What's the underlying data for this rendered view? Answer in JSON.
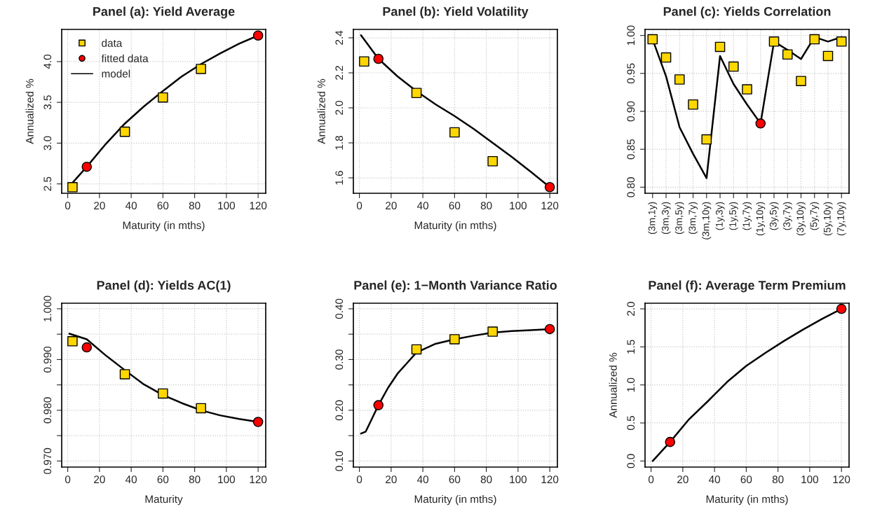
{
  "chart_data": [
    {
      "type": "line",
      "title": "Panel (a): Yield Average",
      "xlabel": "Maturity (in mths)",
      "ylabel": "Annualized %",
      "xlim": [
        -3.8,
        124.8
      ],
      "xticks": [
        0,
        20,
        40,
        60,
        80,
        100,
        120
      ],
      "ylim": [
        2.385,
        4.395
      ],
      "yticks": [
        2.5,
        {
          "value": 3,
          "label": "3.0"
        },
        3.5,
        {
          "value": 4,
          "label": "4.0"
        }
      ],
      "grid": true,
      "legend": "top left",
      "series": [
        {
          "name": "data",
          "type": "scatter",
          "marker": "square",
          "color": "#ffd700",
          "x": [
            3,
            36,
            60,
            84
          ],
          "values": [
            2.46,
            3.14,
            3.56,
            3.91
          ]
        },
        {
          "name": "fitted data",
          "type": "scatter",
          "marker": "circle",
          "color": "#ff0000",
          "x": [
            12,
            120
          ],
          "values": [
            2.71,
            4.32
          ]
        },
        {
          "name": "model",
          "type": "line",
          "color": "#000000",
          "x": [
            1,
            12,
            24,
            36,
            48,
            60,
            72,
            84,
            96,
            108,
            120
          ],
          "values": [
            2.47,
            2.71,
            2.99,
            3.24,
            3.45,
            3.64,
            3.82,
            3.97,
            4.1,
            4.22,
            4.32
          ]
        }
      ]
    },
    {
      "type": "line",
      "title": "Panel (b): Yield Volatility",
      "xlabel": "Maturity (in mths)",
      "ylabel": "Annualized %",
      "xlim": [
        -3.8,
        124.8
      ],
      "xticks": [
        0,
        20,
        40,
        60,
        80,
        100,
        120
      ],
      "ylim": [
        1.512,
        2.448
      ],
      "yticks": [
        1.6,
        1.8,
        {
          "value": 2,
          "label": "2.0"
        },
        2.2,
        2.4
      ],
      "grid": true,
      "series": [
        {
          "type": "scatter",
          "marker": "square",
          "color": "#ffd700",
          "x": [
            3,
            36,
            60,
            84
          ],
          "values": [
            2.265,
            2.085,
            1.86,
            1.695
          ]
        },
        {
          "type": "scatter",
          "marker": "circle",
          "color": "#ff0000",
          "x": [
            12,
            120
          ],
          "values": [
            2.28,
            1.547
          ]
        },
        {
          "type": "line",
          "color": "#000000",
          "x": [
            1,
            12,
            24,
            36,
            48,
            60,
            72,
            84,
            96,
            108,
            120
          ],
          "values": [
            2.415,
            2.28,
            2.18,
            2.095,
            2.02,
            1.953,
            1.88,
            1.8,
            1.72,
            1.635,
            1.547
          ]
        }
      ]
    },
    {
      "type": "line",
      "title": "Panel (c): Yields Correlation",
      "categories": [
        "(3m,1y)",
        "(3m,3y)",
        "(3m,5y)",
        "(3m,7y)",
        "(3m,10y)",
        "(1y,3y)",
        "(1y,5y)",
        "(1y,7y)",
        "(1y,10y)",
        "(3y,5y)",
        "(3y,7y)",
        "(3y,10y)",
        "(5y,7y)",
        "(5y,10y)",
        "(7y,10y)"
      ],
      "ylim": [
        0.792,
        1.008
      ],
      "yticks": [
        {
          "value": 0.8,
          "label": "0.80"
        },
        0.85,
        {
          "value": 0.9,
          "label": "0.90"
        },
        0.95,
        {
          "value": 1,
          "label": "1.00"
        }
      ],
      "grid": true,
      "series": [
        {
          "type": "line",
          "color": "#000000",
          "values": [
            0.995,
            0.946,
            0.879,
            0.844,
            0.812,
            0.973,
            0.936,
            0.909,
            0.884,
            0.992,
            0.981,
            0.969,
            0.998,
            0.992,
            0.998
          ]
        },
        {
          "type": "scatter",
          "marker": "square",
          "color": "#ffd700",
          "values": [
            0.995,
            0.971,
            0.942,
            0.909,
            0.863,
            0.985,
            0.959,
            0.929,
            null,
            0.992,
            0.975,
            0.94,
            0.995,
            0.973,
            0.992
          ]
        },
        {
          "type": "scatter",
          "marker": "circle",
          "color": "#ff0000",
          "values": [
            null,
            null,
            null,
            null,
            null,
            null,
            null,
            null,
            0.884,
            null,
            null,
            null,
            null,
            null,
            null
          ]
        }
      ]
    },
    {
      "type": "line",
      "title": "Panel (d): Yields AC(1)",
      "xlabel": "Maturity",
      "xlim": [
        -3.8,
        124.8
      ],
      "xticks": [
        0,
        20,
        40,
        60,
        80,
        100,
        120
      ],
      "ylim": [
        0.9688,
        1.0011
      ],
      "yticks": [
        {
          "value": 0.97,
          "label": "0.970"
        },
        {
          "value": 0.975,
          "label": null
        },
        {
          "value": 0.98,
          "label": "0.980"
        },
        {
          "value": 0.985,
          "label": null
        },
        {
          "value": 0.99,
          "label": "0.990"
        },
        {
          "value": 0.995,
          "label": null
        },
        {
          "value": 1.0,
          "label": "1.000"
        }
      ],
      "grid": true,
      "series": [
        {
          "type": "line",
          "color": "#000000",
          "x": [
            1,
            12,
            24,
            36,
            48,
            60,
            72,
            84,
            96,
            108,
            120
          ],
          "values": [
            0.9951,
            0.994,
            0.9908,
            0.9879,
            0.9851,
            0.983,
            0.9814,
            0.98,
            0.979,
            0.9783,
            0.9777
          ]
        },
        {
          "type": "scatter",
          "marker": "square",
          "color": "#ffd700",
          "x": [
            3,
            36,
            60,
            84
          ],
          "values": [
            0.9936,
            0.9871,
            0.9833,
            0.9804
          ]
        },
        {
          "type": "scatter",
          "marker": "circle",
          "color": "#ff0000",
          "x": [
            12,
            120
          ],
          "values": [
            0.9924,
            0.9777
          ]
        }
      ]
    },
    {
      "type": "line",
      "title": "Panel (e): 1−Month Variance Ratio",
      "xlabel": "Maturity (in mths)",
      "xlim": [
        -3.8,
        124.8
      ],
      "xticks": [
        0,
        20,
        40,
        60,
        80,
        100,
        120
      ],
      "ylim": [
        0.088,
        0.411
      ],
      "yticks": [
        {
          "value": 0.1,
          "label": "0.10"
        },
        {
          "value": 0.15,
          "label": null
        },
        {
          "value": 0.2,
          "label": "0.20"
        },
        {
          "value": 0.25,
          "label": null
        },
        {
          "value": 0.3,
          "label": "0.30"
        },
        {
          "value": 0.35,
          "label": null
        },
        {
          "value": 0.4,
          "label": "0.40"
        }
      ],
      "grid": true,
      "series": [
        {
          "type": "line",
          "color": "#000000",
          "x": [
            1,
            4,
            8,
            12,
            18,
            24,
            30,
            36,
            48,
            60,
            72,
            84,
            96,
            108,
            120
          ],
          "values": [
            0.154,
            0.158,
            0.184,
            0.21,
            0.244,
            0.272,
            0.293,
            0.314,
            0.331,
            0.34,
            0.347,
            0.353,
            0.356,
            0.358,
            0.36
          ]
        },
        {
          "type": "scatter",
          "marker": "square",
          "color": "#ffd700",
          "x": [
            36,
            60,
            84
          ],
          "values": [
            0.32,
            0.34,
            0.355
          ]
        },
        {
          "type": "scatter",
          "marker": "circle",
          "color": "#ff0000",
          "x": [
            12,
            120
          ],
          "values": [
            0.21,
            0.36
          ]
        }
      ]
    },
    {
      "type": "line",
      "title": "Panel (f): Average Term Premium",
      "xlabel": "Maturity (in mths)",
      "ylabel": "Annualized %",
      "xlim": [
        -3.8,
        124.8
      ],
      "xticks": [
        0,
        20,
        40,
        60,
        80,
        100,
        120
      ],
      "ylim": [
        -0.08,
        2.074
      ],
      "yticks": [
        {
          "value": 0,
          "label": "0.0"
        },
        0.5,
        {
          "value": 1,
          "label": "1.0"
        },
        1.5,
        {
          "value": 2,
          "label": "2.0"
        }
      ],
      "grid": true,
      "series": [
        {
          "type": "line",
          "color": "#000000",
          "x": [
            1,
            12,
            24,
            36,
            48,
            60,
            72,
            84,
            96,
            108,
            120
          ],
          "values": [
            0.0,
            0.25,
            0.55,
            0.79,
            1.04,
            1.25,
            1.42,
            1.58,
            1.73,
            1.87,
            2.0
          ]
        },
        {
          "type": "scatter",
          "marker": "circle",
          "color": "#ff0000",
          "x": [
            12,
            120
          ],
          "values": [
            0.25,
            2.0
          ]
        }
      ]
    }
  ]
}
